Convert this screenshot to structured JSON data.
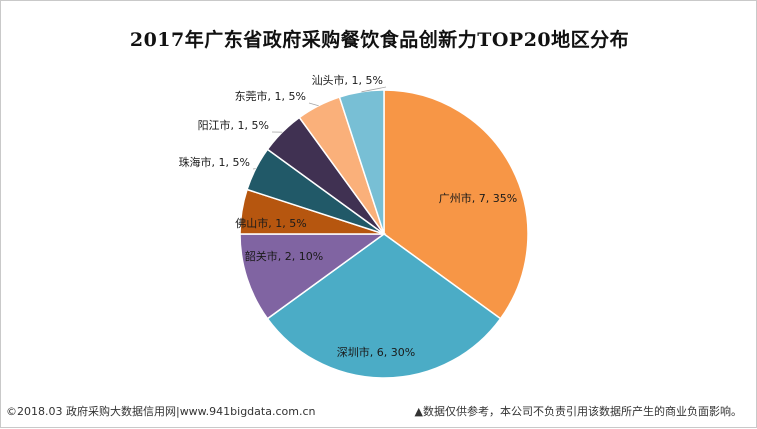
{
  "chart_data": {
    "type": "pie",
    "title": "2017年广东省政府采购餐饮食品创新力TOP20地区分布",
    "slices": [
      {
        "name": "广州市",
        "value": 7,
        "percent": "35%",
        "color": "#F79646"
      },
      {
        "name": "深圳市",
        "value": 6,
        "percent": "30%",
        "color": "#4BACC6"
      },
      {
        "name": "韶关市",
        "value": 2,
        "percent": "10%",
        "color": "#8064A2"
      },
      {
        "name": "佛山市",
        "value": 1,
        "percent": "5%",
        "color": "#B6560F"
      },
      {
        "name": "珠海市",
        "value": 1,
        "percent": "5%",
        "color": "#215968"
      },
      {
        "name": "阳江市",
        "value": 1,
        "percent": "5%",
        "color": "#403152"
      },
      {
        "name": "东莞市",
        "value": 1,
        "percent": "5%",
        "color": "#FAB07A"
      },
      {
        "name": "汕头市",
        "value": 1,
        "percent": "5%",
        "color": "#78BFD5"
      }
    ],
    "start_angle": "12 o'clock, clockwise",
    "legend": "none"
  },
  "footer": {
    "left": "©2018.03 政府采购大数据信用网|www.941bigdata.com.cn",
    "right": "▲数据仅供参考，本公司不负责引用该数据所产生的商业负面影响。"
  }
}
